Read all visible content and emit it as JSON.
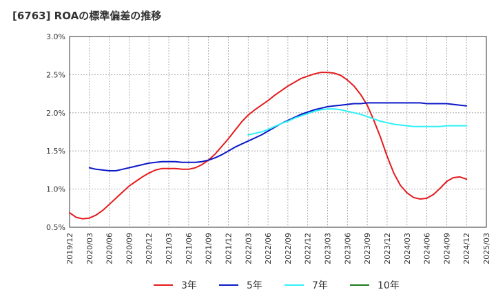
{
  "title": "[6763]  ROAの標準偏差の推移",
  "colors": {
    "3年": "#e41a1c",
    "5年": "#0a17c7",
    "7年": "#2ef0f7",
    "10年": "#1a7a1a",
    "grid": "#999999",
    "frame": "#333333"
  },
  "chart_data": {
    "type": "line",
    "title": "[6763]  ROAの標準偏差の推移",
    "xlabel": "",
    "ylabel": "",
    "ylim": [
      0.5,
      3.0
    ],
    "y_ticks": [
      "0.5%",
      "1.0%",
      "1.5%",
      "2.0%",
      "2.5%",
      "3.0%"
    ],
    "x_ticks": [
      "2019/12",
      "2020/03",
      "2020/06",
      "2020/09",
      "2020/12",
      "2021/03",
      "2021/06",
      "2021/09",
      "2021/12",
      "2022/03",
      "2022/06",
      "2022/09",
      "2022/12",
      "2023/03",
      "2023/06",
      "2023/09",
      "2023/12",
      "2024/03",
      "2024/06",
      "2024/09",
      "2024/12",
      "2025/03"
    ],
    "grid": true,
    "legend_position": "bottom",
    "series": [
      {
        "name": "3年",
        "color": "#e41a1c",
        "points": [
          [
            "2019/12",
            0.69
          ],
          [
            "2020/01",
            0.63
          ],
          [
            "2020/02",
            0.61
          ],
          [
            "2020/03",
            0.62
          ],
          [
            "2020/04",
            0.66
          ],
          [
            "2020/05",
            0.72
          ],
          [
            "2020/06",
            0.8
          ],
          [
            "2020/07",
            0.88
          ],
          [
            "2020/08",
            0.96
          ],
          [
            "2020/09",
            1.04
          ],
          [
            "2020/10",
            1.1
          ],
          [
            "2020/11",
            1.16
          ],
          [
            "2020/12",
            1.21
          ],
          [
            "2021/01",
            1.25
          ],
          [
            "2021/02",
            1.27
          ],
          [
            "2021/03",
            1.27
          ],
          [
            "2021/04",
            1.27
          ],
          [
            "2021/05",
            1.26
          ],
          [
            "2021/06",
            1.26
          ],
          [
            "2021/07",
            1.28
          ],
          [
            "2021/08",
            1.32
          ],
          [
            "2021/09",
            1.38
          ],
          [
            "2021/10",
            1.46
          ],
          [
            "2021/11",
            1.56
          ],
          [
            "2021/12",
            1.66
          ],
          [
            "2022/01",
            1.77
          ],
          [
            "2022/02",
            1.88
          ],
          [
            "2022/03",
            1.97
          ],
          [
            "2022/04",
            2.04
          ],
          [
            "2022/05",
            2.1
          ],
          [
            "2022/06",
            2.16
          ],
          [
            "2022/07",
            2.23
          ],
          [
            "2022/08",
            2.29
          ],
          [
            "2022/09",
            2.35
          ],
          [
            "2022/10",
            2.4
          ],
          [
            "2022/11",
            2.45
          ],
          [
            "2022/12",
            2.48
          ],
          [
            "2023/01",
            2.51
          ],
          [
            "2023/02",
            2.53
          ],
          [
            "2023/03",
            2.53
          ],
          [
            "2023/04",
            2.52
          ],
          [
            "2023/05",
            2.49
          ],
          [
            "2023/06",
            2.43
          ],
          [
            "2023/07",
            2.35
          ],
          [
            "2023/08",
            2.24
          ],
          [
            "2023/09",
            2.1
          ],
          [
            "2023/10",
            1.9
          ],
          [
            "2023/11",
            1.68
          ],
          [
            "2023/12",
            1.43
          ],
          [
            "2024/01",
            1.21
          ],
          [
            "2024/02",
            1.05
          ],
          [
            "2024/03",
            0.95
          ],
          [
            "2024/04",
            0.89
          ],
          [
            "2024/05",
            0.87
          ],
          [
            "2024/06",
            0.88
          ],
          [
            "2024/07",
            0.93
          ],
          [
            "2024/08",
            1.01
          ],
          [
            "2024/09",
            1.1
          ],
          [
            "2024/10",
            1.15
          ],
          [
            "2024/11",
            1.16
          ],
          [
            "2024/12",
            1.13
          ]
        ]
      },
      {
        "name": "5年",
        "color": "#0a17c7",
        "points": [
          [
            "2020/03",
            1.28
          ],
          [
            "2020/04",
            1.26
          ],
          [
            "2020/05",
            1.25
          ],
          [
            "2020/06",
            1.24
          ],
          [
            "2020/07",
            1.24
          ],
          [
            "2020/08",
            1.26
          ],
          [
            "2020/09",
            1.28
          ],
          [
            "2020/10",
            1.3
          ],
          [
            "2020/11",
            1.32
          ],
          [
            "2020/12",
            1.34
          ],
          [
            "2021/01",
            1.35
          ],
          [
            "2021/02",
            1.36
          ],
          [
            "2021/03",
            1.36
          ],
          [
            "2021/04",
            1.36
          ],
          [
            "2021/05",
            1.35
          ],
          [
            "2021/06",
            1.35
          ],
          [
            "2021/07",
            1.35
          ],
          [
            "2021/08",
            1.36
          ],
          [
            "2021/09",
            1.38
          ],
          [
            "2021/10",
            1.41
          ],
          [
            "2021/11",
            1.45
          ],
          [
            "2021/12",
            1.5
          ],
          [
            "2022/01",
            1.55
          ],
          [
            "2022/02",
            1.59
          ],
          [
            "2022/03",
            1.63
          ],
          [
            "2022/04",
            1.67
          ],
          [
            "2022/05",
            1.71
          ],
          [
            "2022/06",
            1.76
          ],
          [
            "2022/07",
            1.81
          ],
          [
            "2022/08",
            1.86
          ],
          [
            "2022/09",
            1.9
          ],
          [
            "2022/10",
            1.94
          ],
          [
            "2022/11",
            1.98
          ],
          [
            "2022/12",
            2.01
          ],
          [
            "2023/01",
            2.04
          ],
          [
            "2023/02",
            2.06
          ],
          [
            "2023/03",
            2.08
          ],
          [
            "2023/04",
            2.09
          ],
          [
            "2023/05",
            2.1
          ],
          [
            "2023/06",
            2.11
          ],
          [
            "2023/07",
            2.12
          ],
          [
            "2023/08",
            2.12
          ],
          [
            "2023/09",
            2.13
          ],
          [
            "2023/10",
            2.13
          ],
          [
            "2023/11",
            2.13
          ],
          [
            "2023/12",
            2.13
          ],
          [
            "2024/01",
            2.13
          ],
          [
            "2024/02",
            2.13
          ],
          [
            "2024/03",
            2.13
          ],
          [
            "2024/04",
            2.13
          ],
          [
            "2024/05",
            2.13
          ],
          [
            "2024/06",
            2.12
          ],
          [
            "2024/07",
            2.12
          ],
          [
            "2024/08",
            2.12
          ],
          [
            "2024/09",
            2.12
          ],
          [
            "2024/10",
            2.11
          ],
          [
            "2024/11",
            2.1
          ],
          [
            "2024/12",
            2.09
          ]
        ]
      },
      {
        "name": "7年",
        "color": "#2ef0f7",
        "points": [
          [
            "2022/03",
            1.71
          ],
          [
            "2022/04",
            1.73
          ],
          [
            "2022/05",
            1.75
          ],
          [
            "2022/06",
            1.78
          ],
          [
            "2022/07",
            1.82
          ],
          [
            "2022/08",
            1.86
          ],
          [
            "2022/09",
            1.89
          ],
          [
            "2022/10",
            1.93
          ],
          [
            "2022/11",
            1.96
          ],
          [
            "2022/12",
            1.99
          ],
          [
            "2023/01",
            2.02
          ],
          [
            "2023/02",
            2.04
          ],
          [
            "2023/03",
            2.05
          ],
          [
            "2023/04",
            2.05
          ],
          [
            "2023/05",
            2.04
          ],
          [
            "2023/06",
            2.02
          ],
          [
            "2023/07",
            2.0
          ],
          [
            "2023/08",
            1.98
          ],
          [
            "2023/09",
            1.95
          ],
          [
            "2023/10",
            1.92
          ],
          [
            "2023/11",
            1.89
          ],
          [
            "2023/12",
            1.87
          ],
          [
            "2024/01",
            1.85
          ],
          [
            "2024/02",
            1.84
          ],
          [
            "2024/03",
            1.83
          ],
          [
            "2024/04",
            1.82
          ],
          [
            "2024/05",
            1.82
          ],
          [
            "2024/06",
            1.82
          ],
          [
            "2024/07",
            1.82
          ],
          [
            "2024/08",
            1.82
          ],
          [
            "2024/09",
            1.83
          ],
          [
            "2024/10",
            1.83
          ],
          [
            "2024/11",
            1.83
          ],
          [
            "2024/12",
            1.83
          ]
        ]
      },
      {
        "name": "10年",
        "color": "#1a7a1a",
        "points": []
      }
    ]
  }
}
